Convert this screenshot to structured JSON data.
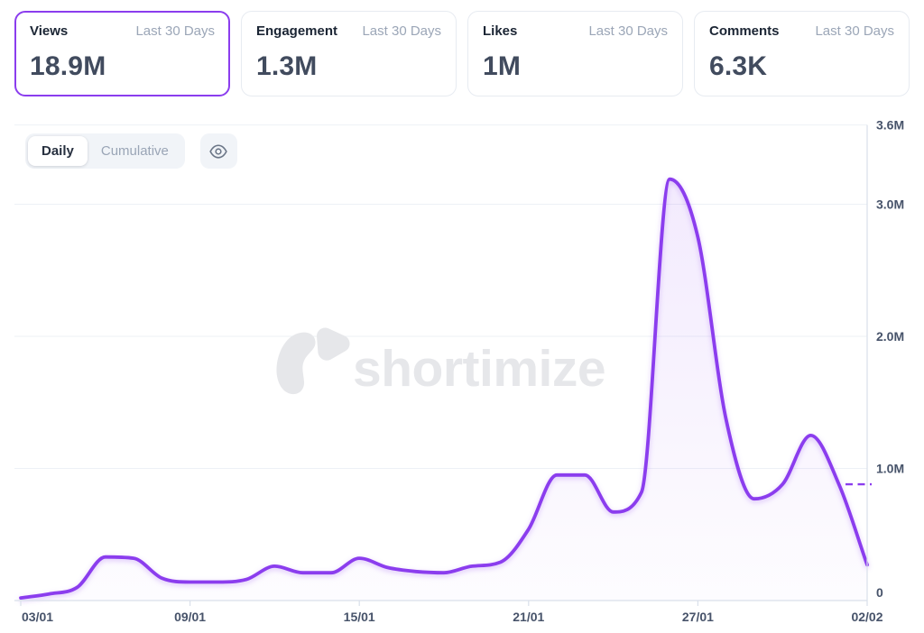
{
  "stats": [
    {
      "label": "Views",
      "period": "Last 30 Days",
      "value": "18.9M",
      "selected": true
    },
    {
      "label": "Engagement",
      "period": "Last 30 Days",
      "value": "1.3M",
      "selected": false
    },
    {
      "label": "Likes",
      "period": "Last 30 Days",
      "value": "1M",
      "selected": false
    },
    {
      "label": "Comments",
      "period": "Last 30 Days",
      "value": "6.3K",
      "selected": false
    }
  ],
  "controls": {
    "daily_label": "Daily",
    "cumulative_label": "Cumulative",
    "selected_mode": "Daily",
    "eye_icon": "eye-icon"
  },
  "watermark": {
    "logo_icon": "shortimize-logo-icon",
    "text": "shortimize"
  },
  "accent_color": "#8b3dee",
  "chart_data": {
    "type": "area",
    "series_name": "Daily Views",
    "x": [
      "03/01",
      "04/01",
      "05/01",
      "06/01",
      "07/01",
      "08/01",
      "09/01",
      "10/01",
      "11/01",
      "12/01",
      "13/01",
      "14/01",
      "15/01",
      "16/01",
      "17/01",
      "18/01",
      "19/01",
      "20/01",
      "21/01",
      "22/01",
      "23/01",
      "24/01",
      "25/01",
      "26/01",
      "27/01",
      "28/01",
      "29/01",
      "30/01",
      "31/01",
      "01/02",
      "02/02"
    ],
    "values": [
      0.02,
      0.05,
      0.1,
      0.33,
      0.32,
      0.17,
      0.14,
      0.14,
      0.16,
      0.26,
      0.21,
      0.21,
      0.32,
      0.25,
      0.22,
      0.21,
      0.26,
      0.29,
      0.54,
      0.95,
      0.95,
      0.67,
      0.82,
      3.19,
      2.75,
      1.37,
      0.77,
      0.88,
      1.25,
      0.88,
      0.27
    ],
    "unit": "millions of views",
    "x_tick_labels": [
      "03/01",
      "09/01",
      "15/01",
      "21/01",
      "27/01",
      "02/02"
    ],
    "x_tick_indices": [
      0,
      6,
      12,
      18,
      24,
      30
    ],
    "y_ticks": [
      {
        "label": "0",
        "value": 0
      },
      {
        "label": "1.0M",
        "value": 1.0
      },
      {
        "label": "2.0M",
        "value": 2.0
      },
      {
        "label": "3.0M",
        "value": 3.0
      },
      {
        "label": "3.6M",
        "value": 3.6
      }
    ],
    "ylim": [
      0,
      3.6
    ],
    "grid": true,
    "legend_position": "none",
    "last_value_dash": {
      "value": 0.88
    },
    "colors": {
      "line": "#8b3dee",
      "grid": "#edf1f6",
      "axis": "#d9e0ea",
      "label": "#47536a",
      "watermark": "#e6e7ea"
    }
  }
}
